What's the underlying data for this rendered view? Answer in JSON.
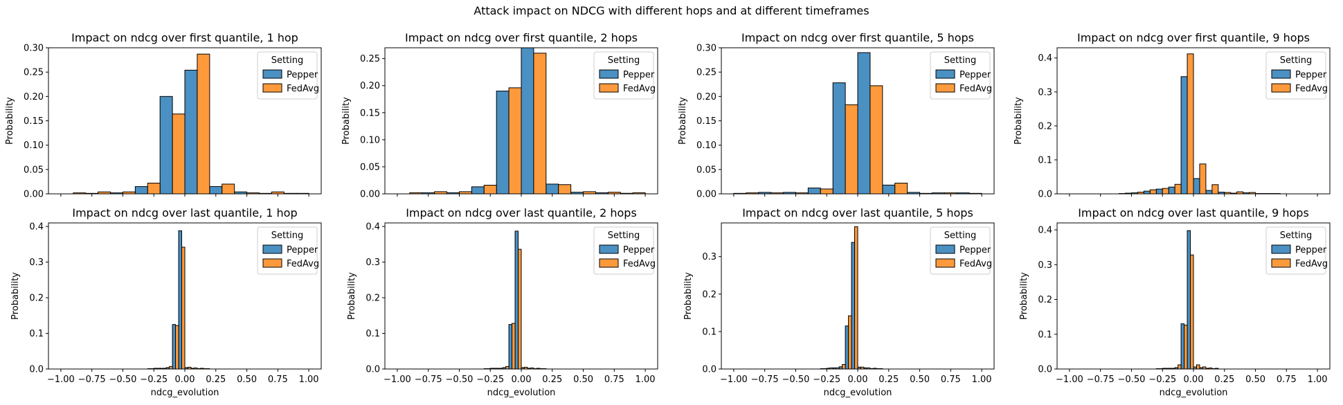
{
  "suptitle": "Attack impact on NDCG with different hops and at different timeframes",
  "colors": {
    "Pepper": "#4a90c2",
    "FedAvg": "#ff9a3c"
  },
  "legend": {
    "title": "Setting",
    "entries": [
      "Pepper",
      "FedAvg"
    ]
  },
  "chart_data": [
    {
      "type": "bar",
      "title": "Impact on ndcg over first quantile, 1 hop",
      "xlabel": "",
      "ylabel": "Probability",
      "xlim": [
        -1.1,
        1.1
      ],
      "ylim": [
        0,
        0.3
      ],
      "yticks": [
        0.0,
        0.05,
        0.1,
        0.15,
        0.2,
        0.25,
        0.3
      ],
      "ytick_labels": [
        "0.00",
        "0.05",
        "0.10",
        "0.15",
        "0.20",
        "0.25",
        "0.30"
      ],
      "xticks": [
        -1.0,
        -0.75,
        -0.5,
        -0.25,
        0.0,
        0.25,
        0.5,
        0.75,
        1.0
      ],
      "xtick_labels": [],
      "bin_edges": [
        -1.0,
        -0.8,
        -0.6,
        -0.4,
        -0.2,
        0.0,
        0.2,
        0.4,
        0.6,
        0.8,
        1.0
      ],
      "series": [
        {
          "name": "Pepper",
          "values": [
            0.0,
            0.001,
            0.002,
            0.015,
            0.2,
            0.254,
            0.015,
            0.004,
            0.001,
            0.001
          ]
        },
        {
          "name": "FedAvg",
          "values": [
            0.002,
            0.004,
            0.004,
            0.022,
            0.164,
            0.287,
            0.02,
            0.002,
            0.004,
            0.001
          ]
        }
      ],
      "legend_position": "upper right"
    },
    {
      "type": "bar",
      "title": "Impact on ndcg over first quantile, 2 hops",
      "xlabel": "",
      "ylabel": "Probability",
      "xlim": [
        -1.1,
        1.1
      ],
      "ylim": [
        0,
        0.27
      ],
      "yticks": [
        0.0,
        0.05,
        0.1,
        0.15,
        0.2,
        0.25
      ],
      "ytick_labels": [
        "0.00",
        "0.05",
        "0.10",
        "0.15",
        "0.20",
        "0.25"
      ],
      "xticks": [
        -1.0,
        -0.75,
        -0.5,
        -0.25,
        0.0,
        0.25,
        0.5,
        0.75,
        1.0
      ],
      "xtick_labels": [],
      "bin_edges": [
        -1.0,
        -0.8,
        -0.6,
        -0.4,
        -0.2,
        0.0,
        0.2,
        0.4,
        0.6,
        0.8,
        1.0
      ],
      "series": [
        {
          "name": "Pepper",
          "values": [
            0.0,
            0.002,
            0.002,
            0.013,
            0.19,
            0.27,
            0.018,
            0.003,
            0.002,
            0.001
          ]
        },
        {
          "name": "FedAvg",
          "values": [
            0.002,
            0.004,
            0.004,
            0.016,
            0.196,
            0.26,
            0.017,
            0.004,
            0.003,
            0.002
          ]
        }
      ],
      "legend_position": "upper right"
    },
    {
      "type": "bar",
      "title": "Impact on ndcg over first quantile, 5 hops",
      "xlabel": "",
      "ylabel": "Probability",
      "xlim": [
        -1.1,
        1.1
      ],
      "ylim": [
        0,
        0.3
      ],
      "yticks": [
        0.0,
        0.05,
        0.1,
        0.15,
        0.2,
        0.25,
        0.3
      ],
      "ytick_labels": [
        "0.00",
        "0.05",
        "0.10",
        "0.15",
        "0.20",
        "0.25",
        "0.30"
      ],
      "xticks": [
        -1.0,
        -0.75,
        -0.5,
        -0.25,
        0.0,
        0.25,
        0.5,
        0.75,
        1.0
      ],
      "xtick_labels": [],
      "bin_edges": [
        -1.0,
        -0.8,
        -0.6,
        -0.4,
        -0.2,
        0.0,
        0.2,
        0.4,
        0.6,
        0.8,
        1.0
      ],
      "series": [
        {
          "name": "Pepper",
          "values": [
            0.001,
            0.003,
            0.003,
            0.012,
            0.228,
            0.29,
            0.018,
            0.003,
            0.002,
            0.002
          ]
        },
        {
          "name": "FedAvg",
          "values": [
            0.002,
            0.002,
            0.002,
            0.01,
            0.183,
            0.222,
            0.022,
            0.001,
            0.002,
            0.001
          ]
        }
      ],
      "legend_position": "upper right"
    },
    {
      "type": "bar",
      "title": "Impact on ndcg over first quantile, 9 hops",
      "xlabel": "",
      "ylabel": "Probability",
      "xlim": [
        -1.1,
        1.1
      ],
      "ylim": [
        0,
        0.43
      ],
      "yticks": [
        0.0,
        0.1,
        0.2,
        0.3,
        0.4
      ],
      "ytick_labels": [
        "0.0",
        "0.1",
        "0.2",
        "0.3",
        "0.4"
      ],
      "xticks": [
        -1.0,
        -0.75,
        -0.5,
        -0.25,
        0.0,
        0.25,
        0.5,
        0.75,
        1.0
      ],
      "xtick_labels": [],
      "bin_edges": [
        -1.0,
        -0.9,
        -0.8,
        -0.7,
        -0.6,
        -0.5,
        -0.4,
        -0.3,
        -0.2,
        -0.1,
        0.0,
        0.1,
        0.2,
        0.3,
        0.4,
        0.5,
        0.6,
        0.7,
        0.8,
        0.9,
        1.0
      ],
      "series": [
        {
          "name": "Pepper",
          "values": [
            0.0,
            0.0,
            0.0,
            0.0,
            0.001,
            0.003,
            0.008,
            0.014,
            0.02,
            0.345,
            0.045,
            0.01,
            0.005,
            0.002,
            0.003,
            0.001,
            0.001,
            0.0,
            0.0,
            0.0
          ]
        },
        {
          "name": "FedAvg",
          "values": [
            0.0,
            0.0,
            0.0,
            0.0,
            0.002,
            0.005,
            0.012,
            0.016,
            0.028,
            0.412,
            0.088,
            0.027,
            0.004,
            0.006,
            0.004,
            0.001,
            0.001,
            0.0,
            0.0,
            0.0
          ]
        }
      ],
      "legend_position": "upper right"
    },
    {
      "type": "bar",
      "title": "Impact on ndcg over last quantile, 1 hop",
      "xlabel": "ndcg_evolution",
      "ylabel": "Probability",
      "xlim": [
        -1.1,
        1.1
      ],
      "ylim": [
        0,
        0.41
      ],
      "yticks": [
        0.0,
        0.1,
        0.2,
        0.3,
        0.4
      ],
      "ytick_labels": [
        "0.0",
        "0.1",
        "0.2",
        "0.3",
        "0.4"
      ],
      "xticks": [
        -1.0,
        -0.75,
        -0.5,
        -0.25,
        0.0,
        0.25,
        0.5,
        0.75,
        1.0
      ],
      "xtick_labels": [
        "−1.00",
        "−0.75",
        "−0.50",
        "−0.25",
        "0.00",
        "0.25",
        "0.50",
        "0.75",
        "1.00"
      ],
      "bin_edges": [
        -0.3,
        -0.25,
        -0.2,
        -0.15,
        -0.1,
        -0.05,
        0.0,
        0.05,
        0.1,
        0.15,
        0.2,
        0.25,
        0.3
      ],
      "series": [
        {
          "name": "Pepper",
          "values": [
            0.001,
            0.002,
            0.002,
            0.004,
            0.125,
            0.388,
            0.004,
            0.002,
            0.001,
            0.001,
            0.0,
            0.0
          ]
        },
        {
          "name": "FedAvg",
          "values": [
            0.001,
            0.002,
            0.002,
            0.007,
            0.122,
            0.342,
            0.005,
            0.003,
            0.002,
            0.001,
            0.0,
            0.0
          ]
        }
      ],
      "legend_position": "upper right"
    },
    {
      "type": "bar",
      "title": "Impact on ndcg over last quantile, 2 hops",
      "xlabel": "ndcg_evolution",
      "ylabel": "Probability",
      "xlim": [
        -1.1,
        1.1
      ],
      "ylim": [
        0,
        0.41
      ],
      "yticks": [
        0.0,
        0.1,
        0.2,
        0.3,
        0.4
      ],
      "ytick_labels": [
        "0.0",
        "0.1",
        "0.2",
        "0.3",
        "0.4"
      ],
      "xticks": [
        -1.0,
        -0.75,
        -0.5,
        -0.25,
        0.0,
        0.25,
        0.5,
        0.75,
        1.0
      ],
      "xtick_labels": [
        "−1.00",
        "−0.75",
        "−0.50",
        "−0.25",
        "0.00",
        "0.25",
        "0.50",
        "0.75",
        "1.00"
      ],
      "bin_edges": [
        -0.3,
        -0.25,
        -0.2,
        -0.15,
        -0.1,
        -0.05,
        0.0,
        0.05,
        0.1,
        0.15,
        0.2,
        0.25,
        0.3
      ],
      "series": [
        {
          "name": "Pepper",
          "values": [
            0.001,
            0.002,
            0.002,
            0.004,
            0.125,
            0.387,
            0.004,
            0.002,
            0.001,
            0.001,
            0.0,
            0.0
          ]
        },
        {
          "name": "FedAvg",
          "values": [
            0.001,
            0.002,
            0.002,
            0.007,
            0.128,
            0.336,
            0.005,
            0.003,
            0.002,
            0.001,
            0.0,
            0.0
          ]
        }
      ],
      "legend_position": "upper right"
    },
    {
      "type": "bar",
      "title": "Impact on ndcg over last quantile, 5 hops",
      "xlabel": "ndcg_evolution",
      "ylabel": "Probability",
      "xlim": [
        -1.1,
        1.1
      ],
      "ylim": [
        0,
        0.39
      ],
      "yticks": [
        0.0,
        0.1,
        0.2,
        0.3
      ],
      "ytick_labels": [
        "0.0",
        "0.1",
        "0.2",
        "0.3"
      ],
      "xticks": [
        -1.0,
        -0.75,
        -0.5,
        -0.25,
        0.0,
        0.25,
        0.5,
        0.75,
        1.0
      ],
      "xtick_labels": [
        "−1.00",
        "−0.75",
        "−0.50",
        "−0.25",
        "0.00",
        "0.25",
        "0.50",
        "0.75",
        "1.00"
      ],
      "bin_edges": [
        -0.3,
        -0.25,
        -0.2,
        -0.15,
        -0.1,
        -0.05,
        0.0,
        0.05,
        0.1,
        0.15,
        0.2,
        0.25,
        0.3
      ],
      "series": [
        {
          "name": "Pepper",
          "values": [
            0.001,
            0.002,
            0.003,
            0.006,
            0.115,
            0.338,
            0.005,
            0.003,
            0.001,
            0.001,
            0.0,
            0.0
          ]
        },
        {
          "name": "FedAvg",
          "values": [
            0.001,
            0.003,
            0.003,
            0.012,
            0.142,
            0.38,
            0.005,
            0.003,
            0.002,
            0.001,
            0.0,
            0.0
          ]
        }
      ],
      "legend_position": "upper right"
    },
    {
      "type": "bar",
      "title": "Impact on ndcg over last quantile, 9 hops",
      "xlabel": "ndcg_evolution",
      "ylabel": "Probability",
      "xlim": [
        -1.1,
        1.1
      ],
      "ylim": [
        0,
        0.42
      ],
      "yticks": [
        0.0,
        0.1,
        0.2,
        0.3,
        0.4
      ],
      "ytick_labels": [
        "0.0",
        "0.1",
        "0.2",
        "0.3",
        "0.4"
      ],
      "xticks": [
        -1.0,
        -0.75,
        -0.5,
        -0.25,
        0.0,
        0.25,
        0.5,
        0.75,
        1.0
      ],
      "xtick_labels": [
        "−1.00",
        "−0.75",
        "−0.50",
        "−0.25",
        "0.00",
        "0.25",
        "0.50",
        "0.75",
        "1.00"
      ],
      "bin_edges": [
        -0.3,
        -0.25,
        -0.2,
        -0.15,
        -0.1,
        -0.05,
        0.0,
        0.05,
        0.1,
        0.15,
        0.2,
        0.25,
        0.3
      ],
      "series": [
        {
          "name": "Pepper",
          "values": [
            0.001,
            0.002,
            0.002,
            0.004,
            0.13,
            0.398,
            0.006,
            0.004,
            0.002,
            0.001,
            0.0,
            0.0
          ]
        },
        {
          "name": "FedAvg",
          "values": [
            0.001,
            0.002,
            0.002,
            0.012,
            0.126,
            0.328,
            0.012,
            0.006,
            0.003,
            0.002,
            0.0,
            0.0
          ]
        }
      ],
      "legend_position": "upper right"
    }
  ]
}
